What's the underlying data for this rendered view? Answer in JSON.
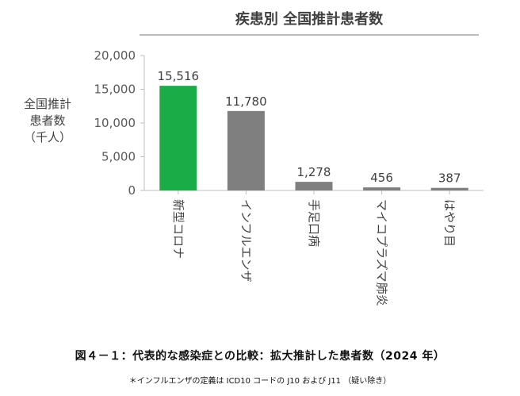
{
  "chart_data": {
    "type": "bar",
    "title": "疾患別 全国推計患者数",
    "ylabel": [
      "全国推計",
      "患者数",
      "（千人）"
    ],
    "categories": [
      "新型コロナ",
      "インフルエンザ",
      "手足口病",
      "マイコプラズマ肺炎",
      "はやり目"
    ],
    "values": [
      15516,
      11780,
      1278,
      456,
      387
    ],
    "value_labels": [
      "15,516",
      "11,780",
      "1,278",
      "456",
      "387"
    ],
    "bar_colors": [
      "#1aac47",
      "#7f7f7f",
      "#7f7f7f",
      "#7f7f7f",
      "#7f7f7f"
    ],
    "yticks": [
      0,
      5000,
      10000,
      15000,
      20000
    ],
    "ytick_labels": [
      "0",
      "5,000",
      "10,000",
      "15,000",
      "20,000"
    ],
    "ylim": [
      0,
      20000
    ],
    "grid": false,
    "legend": "none"
  },
  "caption": "図４－１：代表的な感染症との比較：拡大推計した患者数（2024 年）",
  "note": "＊インフルエンザの定義は ICD10 コードの J10 および J11 （疑い除き）"
}
